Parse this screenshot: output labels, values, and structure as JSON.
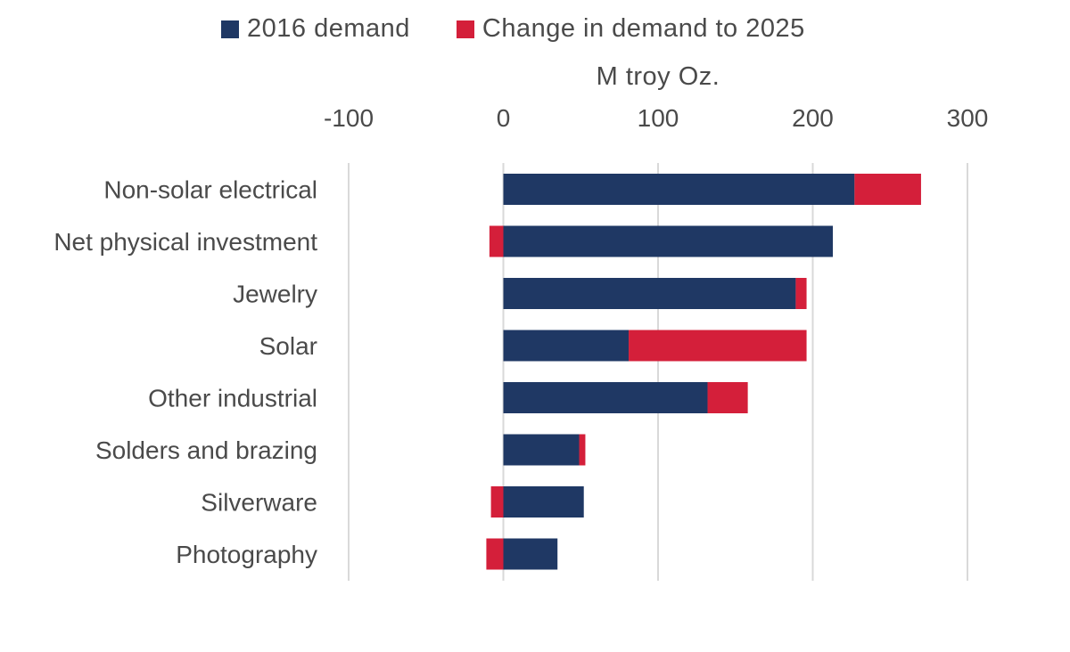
{
  "chart_data": {
    "type": "bar",
    "orientation": "horizontal",
    "stacked": true,
    "unit_label": "M troy Oz.",
    "categories": [
      "Non-solar electrical",
      "Net physical investment",
      "Jewelry",
      "Solar",
      "Other industrial",
      "Solders and brazing",
      "Silverware",
      "Photography"
    ],
    "series": [
      {
        "name": "2016 demand",
        "color": "#1f3864",
        "values": [
          227,
          213,
          189,
          81,
          132,
          49,
          52,
          35
        ]
      },
      {
        "name": "Change in demand to 2025",
        "color": "#d41f3a",
        "values": [
          43,
          -9,
          7,
          115,
          26,
          4,
          -8,
          -11
        ]
      }
    ],
    "xlim": [
      -100,
      300
    ],
    "xticks": [
      "-100",
      "0",
      "100",
      "200",
      "300"
    ],
    "xtick_values": [
      -100,
      0,
      100,
      200,
      300
    ],
    "grid": true,
    "legend_position": "top"
  }
}
